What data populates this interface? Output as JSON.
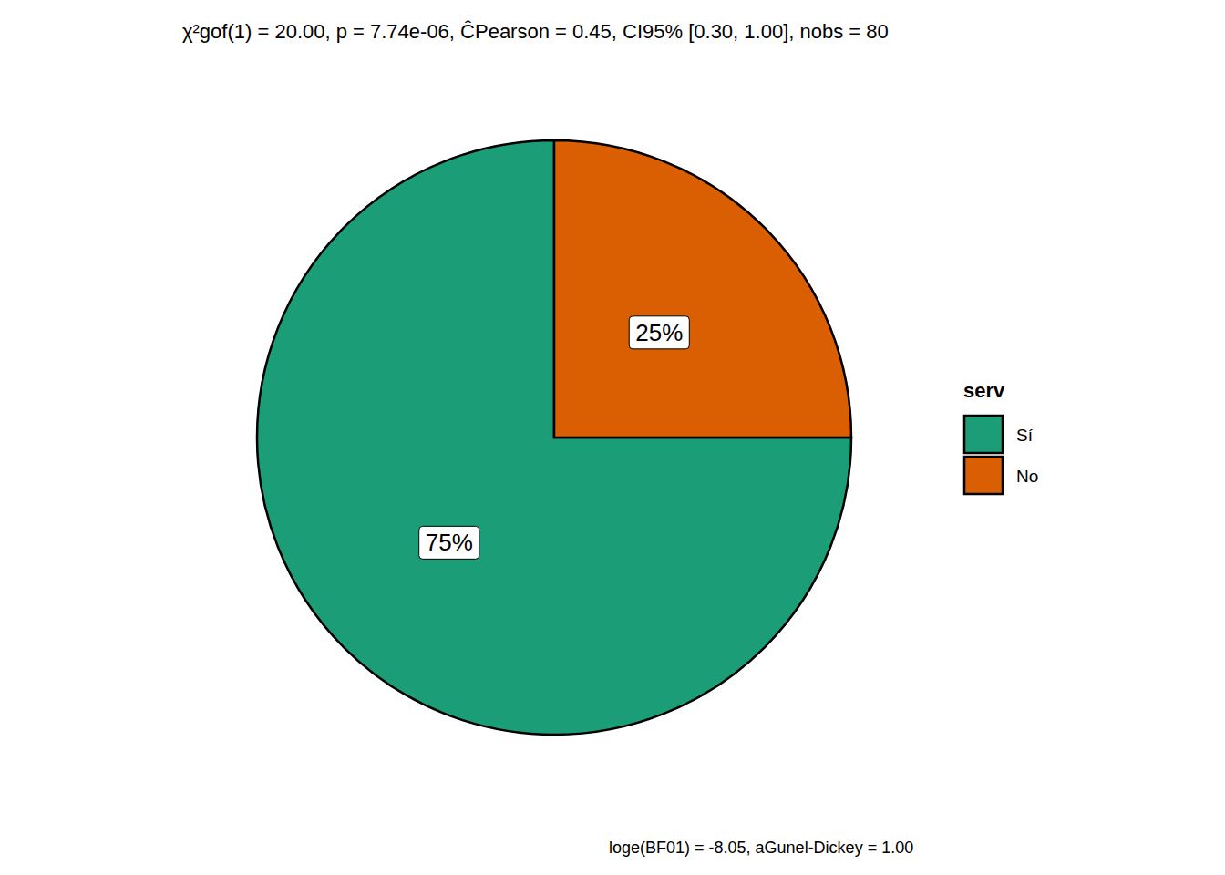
{
  "chart_data": {
    "type": "pie",
    "title": "χ²gof(1) = 20.00, p = 7.74e-06, ĈPearson = 0.45, CI95% [0.30, 1.00], nobs = 80",
    "caption": "loge(BF01) = -8.05, aGunel-Dickey = 1.00",
    "legend_title": "serv",
    "categories": [
      "Sí",
      "No"
    ],
    "values": [
      75,
      25
    ],
    "value_labels": [
      "75%",
      "25%"
    ],
    "colors": [
      "#1b9e77",
      "#d95f02"
    ],
    "data_labels": true,
    "legend": "right"
  }
}
